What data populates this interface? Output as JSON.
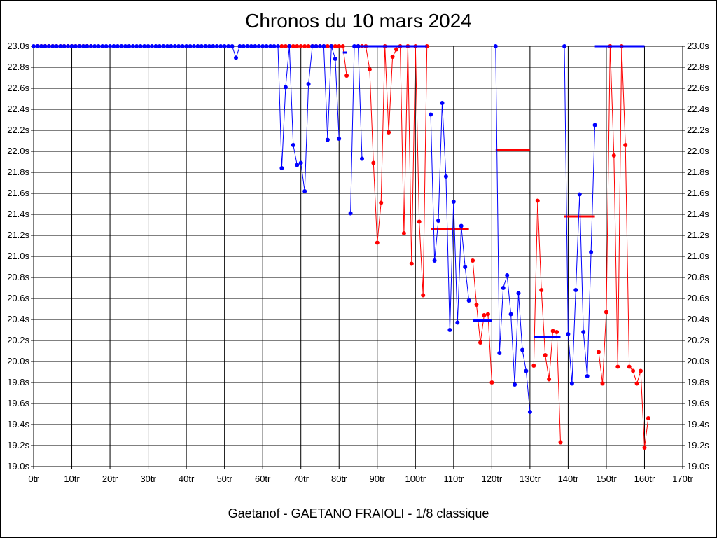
{
  "chart_data": {
    "type": "line",
    "title": "Chronos du 10 mars 2024",
    "footer": "Gaetanof - GAETANO FRAIOLI - 1/8 classique",
    "x_ticks": [
      "0tr",
      "10tr",
      "20tr",
      "30tr",
      "40tr",
      "50tr",
      "60tr",
      "70tr",
      "80tr",
      "90tr",
      "100tr",
      "110tr",
      "120tr",
      "130tr",
      "140tr",
      "150tr",
      "160tr",
      "170tr"
    ],
    "y_ticks": [
      "19.0s",
      "19.2s",
      "19.4s",
      "19.6s",
      "19.8s",
      "20.0s",
      "20.2s",
      "20.4s",
      "20.6s",
      "20.8s",
      "21.0s",
      "21.2s",
      "21.4s",
      "21.6s",
      "21.8s",
      "22.0s",
      "22.2s",
      "22.4s",
      "22.6s",
      "22.8s",
      "23.0s"
    ],
    "xlim": [
      0,
      170
    ],
    "ylim": [
      19.0,
      23.0
    ],
    "grid": true,
    "series": [
      {
        "color": "#ff0000",
        "points": [
          [
            1,
            23.0
          ],
          [
            2,
            23.0
          ],
          [
            3,
            23.0
          ],
          [
            4,
            23.0
          ],
          [
            5,
            23.0
          ],
          [
            6,
            23.0
          ],
          [
            7,
            23.0
          ],
          [
            8,
            23.0
          ],
          [
            9,
            23.0
          ],
          [
            10,
            23.0
          ],
          [
            11,
            23.0
          ],
          [
            12,
            23.0
          ],
          [
            13,
            23.0
          ],
          [
            14,
            23.0
          ],
          [
            15,
            23.0
          ],
          [
            65,
            23.0
          ],
          [
            66,
            23.0
          ],
          [
            67,
            23.0
          ],
          [
            68,
            23.0
          ],
          [
            69,
            23.0
          ],
          [
            70,
            23.0
          ],
          [
            71,
            23.0
          ],
          [
            72,
            23.0
          ],
          [
            73,
            23.0
          ],
          [
            74,
            23.0
          ],
          [
            75,
            23.0
          ],
          [
            76,
            23.0
          ],
          [
            77,
            23.0
          ],
          [
            78,
            23.0
          ],
          [
            79,
            23.0
          ],
          [
            80,
            23.0
          ],
          [
            81,
            23.0
          ],
          [
            82,
            22.72
          ],
          [
            85,
            23.0
          ],
          [
            86,
            23.0
          ],
          [
            87,
            23.0
          ],
          [
            88,
            22.78
          ],
          [
            89,
            21.89
          ],
          [
            90,
            21.13
          ],
          [
            91,
            21.51
          ],
          [
            92,
            23.0
          ],
          [
            93,
            22.18
          ],
          [
            94,
            22.9
          ],
          [
            95,
            22.97
          ],
          [
            96,
            23.0
          ],
          [
            97,
            21.22
          ],
          [
            98,
            23.0
          ],
          [
            99,
            20.93
          ],
          [
            100,
            23.0
          ],
          [
            101,
            21.33
          ],
          [
            102,
            20.63
          ],
          [
            103,
            23.0
          ],
          [
            115,
            20.96
          ],
          [
            116,
            20.54
          ],
          [
            117,
            20.18
          ],
          [
            118,
            20.44
          ],
          [
            119,
            20.45
          ],
          [
            120,
            19.8
          ],
          [
            131,
            19.96
          ],
          [
            132,
            21.53
          ],
          [
            133,
            20.68
          ],
          [
            134,
            20.06
          ],
          [
            135,
            19.83
          ],
          [
            136,
            20.29
          ],
          [
            137,
            20.28
          ],
          [
            138,
            19.23
          ],
          [
            148,
            20.09
          ],
          [
            149,
            19.79
          ],
          [
            150,
            20.47
          ],
          [
            151,
            23.0
          ],
          [
            152,
            21.96
          ],
          [
            153,
            19.95
          ],
          [
            154,
            23.0
          ],
          [
            155,
            22.06
          ],
          [
            156,
            19.95
          ],
          [
            157,
            19.91
          ],
          [
            158,
            19.79
          ],
          [
            159,
            19.91
          ],
          [
            160,
            19.18
          ],
          [
            161,
            19.46
          ]
        ],
        "averages": [
          {
            "from": 65,
            "to": 81,
            "y": 23.0
          },
          {
            "from": 104,
            "to": 114,
            "y": 21.26
          },
          {
            "from": 121,
            "to": 130,
            "y": 22.01
          },
          {
            "from": 139,
            "to": 147,
            "y": 21.38
          }
        ]
      },
      {
        "color": "#0000ff",
        "points": [
          [
            0,
            23.0
          ],
          [
            1,
            23.0
          ],
          [
            2,
            23.0
          ],
          [
            3,
            23.0
          ],
          [
            4,
            23.0
          ],
          [
            5,
            23.0
          ],
          [
            6,
            23.0
          ],
          [
            7,
            23.0
          ],
          [
            8,
            23.0
          ],
          [
            9,
            23.0
          ],
          [
            10,
            23.0
          ],
          [
            11,
            23.0
          ],
          [
            12,
            23.0
          ],
          [
            13,
            23.0
          ],
          [
            14,
            23.0
          ],
          [
            15,
            23.0
          ],
          [
            16,
            23.0
          ],
          [
            17,
            23.0
          ],
          [
            18,
            23.0
          ],
          [
            19,
            23.0
          ],
          [
            20,
            23.0
          ],
          [
            21,
            23.0
          ],
          [
            22,
            23.0
          ],
          [
            23,
            23.0
          ],
          [
            24,
            23.0
          ],
          [
            25,
            23.0
          ],
          [
            26,
            23.0
          ],
          [
            27,
            23.0
          ],
          [
            28,
            23.0
          ],
          [
            29,
            23.0
          ],
          [
            30,
            23.0
          ],
          [
            31,
            23.0
          ],
          [
            32,
            23.0
          ],
          [
            33,
            23.0
          ],
          [
            34,
            23.0
          ],
          [
            35,
            23.0
          ],
          [
            36,
            23.0
          ],
          [
            37,
            23.0
          ],
          [
            38,
            23.0
          ],
          [
            39,
            23.0
          ],
          [
            40,
            23.0
          ],
          [
            41,
            23.0
          ],
          [
            42,
            23.0
          ],
          [
            43,
            23.0
          ],
          [
            44,
            23.0
          ],
          [
            45,
            23.0
          ],
          [
            46,
            23.0
          ],
          [
            47,
            23.0
          ],
          [
            48,
            23.0
          ],
          [
            49,
            23.0
          ],
          [
            50,
            23.0
          ],
          [
            51,
            23.0
          ],
          [
            52,
            23.0
          ],
          [
            53,
            22.89
          ],
          [
            54,
            23.0
          ],
          [
            55,
            23.0
          ],
          [
            56,
            23.0
          ],
          [
            57,
            23.0
          ],
          [
            58,
            23.0
          ],
          [
            59,
            23.0
          ],
          [
            60,
            23.0
          ],
          [
            61,
            23.0
          ],
          [
            62,
            23.0
          ],
          [
            63,
            23.0
          ],
          [
            64,
            23.0
          ],
          [
            65,
            21.84
          ],
          [
            66,
            22.61
          ],
          [
            67,
            23.0
          ],
          [
            68,
            22.06
          ],
          [
            69,
            21.87
          ],
          [
            70,
            21.89
          ],
          [
            71,
            21.62
          ],
          [
            72,
            22.64
          ],
          [
            73,
            23.0
          ],
          [
            74,
            23.0
          ],
          [
            75,
            23.0
          ],
          [
            76,
            23.0
          ],
          [
            77,
            22.11
          ],
          [
            78,
            23.0
          ],
          [
            79,
            22.88
          ],
          [
            80,
            22.12
          ],
          [
            83,
            21.41
          ],
          [
            84,
            23.0
          ],
          [
            85,
            23.0
          ],
          [
            86,
            21.93
          ],
          [
            104,
            22.35
          ],
          [
            105,
            20.96
          ],
          [
            106,
            21.34
          ],
          [
            107,
            22.46
          ],
          [
            108,
            21.76
          ],
          [
            109,
            20.3
          ],
          [
            110,
            21.52
          ],
          [
            111,
            20.37
          ],
          [
            112,
            21.29
          ],
          [
            113,
            20.9
          ],
          [
            114,
            20.58
          ],
          [
            121,
            23.0
          ],
          [
            122,
            20.08
          ],
          [
            123,
            20.7
          ],
          [
            124,
            20.82
          ],
          [
            125,
            20.45
          ],
          [
            126,
            19.78
          ],
          [
            127,
            20.65
          ],
          [
            128,
            20.11
          ],
          [
            129,
            19.91
          ],
          [
            130,
            19.52
          ],
          [
            139,
            23.0
          ],
          [
            140,
            20.26
          ],
          [
            141,
            19.79
          ],
          [
            142,
            20.68
          ],
          [
            143,
            21.59
          ],
          [
            144,
            20.28
          ],
          [
            145,
            19.86
          ],
          [
            146,
            21.04
          ],
          [
            147,
            22.25
          ]
        ],
        "averages": [
          {
            "from": 81,
            "to": 82,
            "y": 22.94
          },
          {
            "from": 84,
            "to": 103,
            "y": 23.0
          },
          {
            "from": 115,
            "to": 120,
            "y": 20.39
          },
          {
            "from": 131,
            "to": 138,
            "y": 20.23
          },
          {
            "from": 147,
            "to": 160,
            "y": 23.0
          }
        ]
      }
    ]
  }
}
